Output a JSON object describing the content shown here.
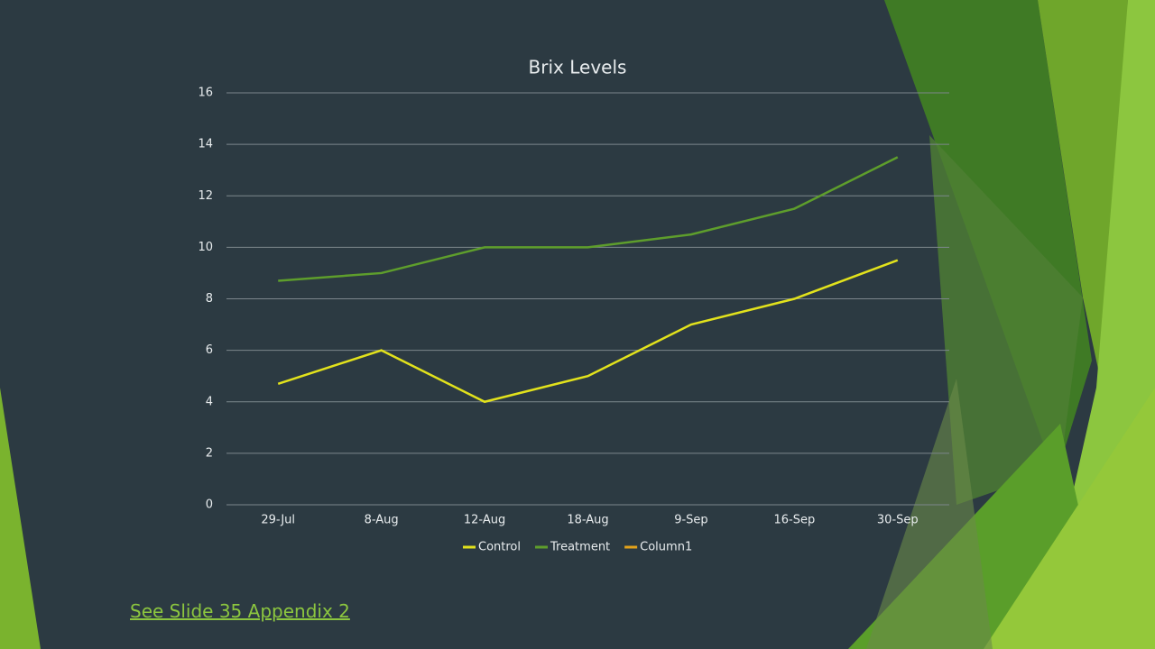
{
  "chart_data": {
    "type": "line",
    "title": "Brix Levels",
    "categories": [
      "29-Jul",
      "8-Aug",
      "12-Aug",
      "18-Aug",
      "9-Sep",
      "16-Sep",
      "30-Sep"
    ],
    "series": [
      {
        "name": "Control",
        "color": "#e2e21c",
        "values": [
          4.7,
          6,
          4,
          5,
          7,
          8,
          9.5
        ]
      },
      {
        "name": "Treatment",
        "color": "#5e9e2c",
        "values": [
          8.7,
          9,
          10,
          10,
          10.5,
          11.5,
          13.5
        ]
      },
      {
        "name": "Column1",
        "color": "#e3a21a",
        "values": [
          null,
          null,
          null,
          null,
          null,
          null,
          null
        ]
      }
    ],
    "ylim": [
      0,
      16
    ],
    "yticks": [
      0,
      2,
      4,
      6,
      8,
      10,
      12,
      14,
      16
    ],
    "grid": true,
    "legend": "bottom"
  },
  "link": "See Slide 35 Appendix 2"
}
